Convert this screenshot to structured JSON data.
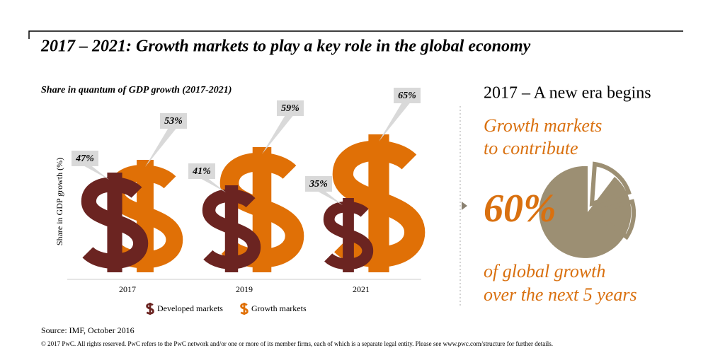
{
  "chart_data": {
    "type": "pictogram",
    "title": "2017 – 2021: Growth markets to play a key role in the global economy",
    "subtitle": "Share in quantum of GDP growth (2017-2021)",
    "y_label": "Share in GDP growth (%)",
    "categories": [
      "2017",
      "2019",
      "2021"
    ],
    "series": [
      {
        "name": "Developed markets",
        "color": "#6b2421",
        "values": [
          47,
          41,
          35
        ],
        "value_labels": [
          "47%",
          "41%",
          "35%"
        ]
      },
      {
        "name": "Growth markets",
        "color": "#e07006",
        "values": [
          53,
          59,
          65
        ],
        "value_labels": [
          "53%",
          "59%",
          "65%"
        ]
      }
    ]
  },
  "callout": {
    "heading": "2017 – A new era begins",
    "lines_top": [
      "Growth markets",
      "to contribute"
    ],
    "figure": "60%",
    "lines_bottom": [
      "of global growth",
      "over the next 5 years"
    ]
  },
  "footer": {
    "source": "Source: IMF, October 2016",
    "copyright": "© 2017 PwC. All rights reserved. PwC refers to the PwC network and/or one or more of its member firms, each of which is a separate legal entity. Please see www.pwc.com/structure for further details."
  }
}
